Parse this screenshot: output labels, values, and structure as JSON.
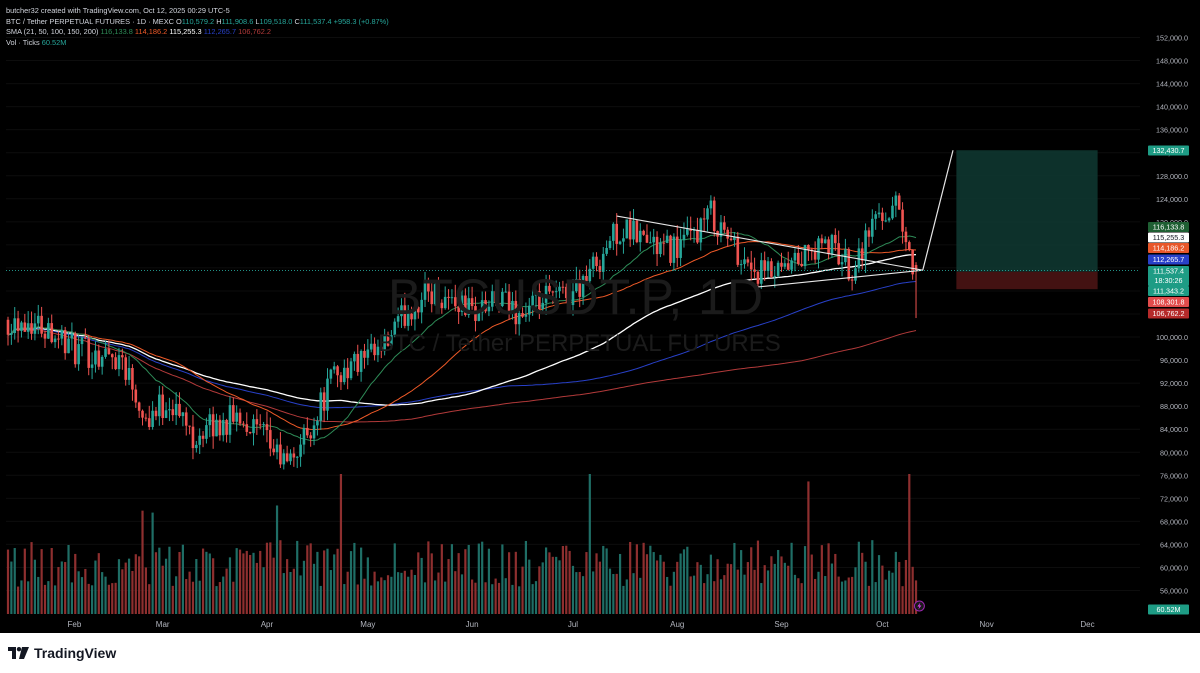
{
  "header": {
    "author_line": "butcher32 created with TradingView.com, Oct 12, 2025 00:29 UTC-5",
    "symbol_line_prefix": "BTC / Tether PERPETUAL FUTURES · 1D · MEXC",
    "ohlc": {
      "o_label": "O",
      "o": "110,579.2",
      "h_label": "H",
      "h": "111,908.6",
      "l_label": "L",
      "l": "109,518.0",
      "c_label": "C",
      "c": "111,537.4",
      "change": "+958.3 (+0.87%)"
    },
    "sma_label": "SMA (21, 50, 100, 150, 200)",
    "sma_values": [
      "116,133.8",
      "114,186.2",
      "115,255.3",
      "112,265.7",
      "106,762.2"
    ],
    "vol_label": "Vol · Ticks",
    "vol_value": "60.52M"
  },
  "watermark": {
    "symbol": "BTCUSDT.P, 1D",
    "description": "BTC / Tether PERPETUAL FUTURES"
  },
  "footer": {
    "brand": "TradingView"
  },
  "colors": {
    "up": "#26a69a",
    "down": "#ef5350",
    "sma21": "#2e8b57",
    "sma50": "#ef5a28",
    "sma100": "#ffffff",
    "sma150": "#2840c8",
    "sma200": "#b23a3a"
  },
  "chart_data": {
    "type": "candlestick",
    "timeframe": "1D",
    "x_tick_labels": [
      "Feb",
      "Mar",
      "Apr",
      "May",
      "Jun",
      "Jul",
      "Aug",
      "Sep",
      "Oct",
      "Nov",
      "Dec"
    ],
    "y_tick_labels": [
      152000,
      148000,
      144000,
      140000,
      136000,
      132000,
      128000,
      124000,
      120000,
      116000,
      112000,
      108000,
      104000,
      100000,
      96000,
      92000,
      88000,
      84000,
      80000,
      76000,
      72000,
      68000,
      64000,
      60000,
      56000
    ],
    "ylim": [
      52800,
      154000
    ],
    "price_tags": [
      {
        "value": "132,430.7",
        "color": "#1e9c85",
        "text_color": "#ffffff"
      },
      {
        "value": "116,133.8",
        "color": "#1f5f33",
        "text_color": "#ffffff"
      },
      {
        "value": "115,255.3",
        "color": "#ffffff",
        "text_color": "#131722"
      },
      {
        "value": "114,186.2",
        "color": "#e8572a",
        "text_color": "#ffffff"
      },
      {
        "value": "112,265.7",
        "color": "#2840c8",
        "text_color": "#ffffff"
      },
      {
        "value": "111,537.4",
        "color": "#1e9c85",
        "text_color": "#ffffff",
        "sub": "18:30:26"
      },
      {
        "value": "111,343.2",
        "color": "#1e9c85",
        "text_color": "#ffffff"
      },
      {
        "value": "108,301.8",
        "color": "#e24c4c",
        "text_color": "#ffffff"
      },
      {
        "value": "106,762.2",
        "color": "#b52a2a",
        "text_color": "#ffffff"
      },
      {
        "value": "60.52M",
        "color": "#1e9c85",
        "text_color": "#ffffff"
      }
    ],
    "current_price": 111537.4,
    "price_series": [
      {
        "date": "2025-01-20",
        "close": 103000
      },
      {
        "date": "2025-01-27",
        "close": 101500
      },
      {
        "date": "2025-02-03",
        "close": 97500
      },
      {
        "date": "2025-02-10",
        "close": 97000
      },
      {
        "date": "2025-02-17",
        "close": 96500
      },
      {
        "date": "2025-02-24",
        "close": 86000
      },
      {
        "date": "2025-03-03",
        "close": 89000
      },
      {
        "date": "2025-03-10",
        "close": 83000
      },
      {
        "date": "2025-03-17",
        "close": 84500
      },
      {
        "date": "2025-03-24",
        "close": 86500
      },
      {
        "date": "2025-03-31",
        "close": 82500
      },
      {
        "date": "2025-04-07",
        "close": 77500
      },
      {
        "date": "2025-04-14",
        "close": 84500
      },
      {
        "date": "2025-04-21",
        "close": 93500
      },
      {
        "date": "2025-04-28",
        "close": 95500
      },
      {
        "date": "2025-05-05",
        "close": 97000
      },
      {
        "date": "2025-05-12",
        "close": 104000
      },
      {
        "date": "2025-05-19",
        "close": 108000
      },
      {
        "date": "2025-05-26",
        "close": 106500
      },
      {
        "date": "2025-06-02",
        "close": 104500
      },
      {
        "date": "2025-06-09",
        "close": 106000
      },
      {
        "date": "2025-06-16",
        "close": 104000
      },
      {
        "date": "2025-06-23",
        "close": 106500
      },
      {
        "date": "2025-06-30",
        "close": 107500
      },
      {
        "date": "2025-07-07",
        "close": 112000
      },
      {
        "date": "2025-07-14",
        "close": 118500
      },
      {
        "date": "2025-07-21",
        "close": 117500
      },
      {
        "date": "2025-07-28",
        "close": 115000
      },
      {
        "date": "2025-08-04",
        "close": 116500
      },
      {
        "date": "2025-08-11",
        "close": 121500
      },
      {
        "date": "2025-08-18",
        "close": 115500
      },
      {
        "date": "2025-08-25",
        "close": 111000
      },
      {
        "date": "2025-09-01",
        "close": 110500
      },
      {
        "date": "2025-09-08",
        "close": 114000
      },
      {
        "date": "2025-09-15",
        "close": 116000
      },
      {
        "date": "2025-09-22",
        "close": 112000
      },
      {
        "date": "2025-09-29",
        "close": 121000
      },
      {
        "date": "2025-10-06",
        "close": 123000
      },
      {
        "date": "2025-10-10",
        "close": 111500
      }
    ],
    "drawings": {
      "upper_trendline": [
        {
          "date": "2025-07-14",
          "price": 121000
        },
        {
          "date": "2025-10-13",
          "price": 111600
        }
      ],
      "lower_trendline": [
        {
          "date": "2025-08-25",
          "price": 108700
        },
        {
          "date": "2025-10-13",
          "price": 111600
        }
      ],
      "projection_line": [
        {
          "date": "2025-10-13",
          "price": 111600
        },
        {
          "date": "2025-10-22",
          "price": 132430.7
        }
      ],
      "long_position": {
        "entry": 111343.2,
        "target": 132430.7,
        "stop": 108301.8
      }
    }
  }
}
